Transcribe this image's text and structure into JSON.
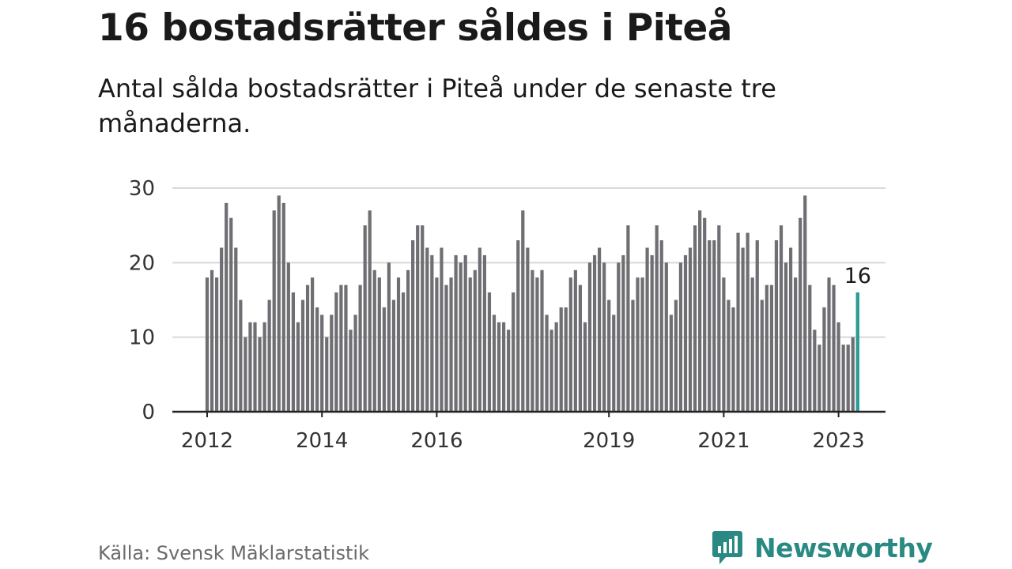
{
  "header": {
    "title": "16 bostadsrätter såldes i Piteå",
    "subtitle": "Antal sålda bostadsrätter i Piteå under de senaste tre månaderna."
  },
  "footer": {
    "source": "Källa: Svensk Mäklarstatistik",
    "brand_name": "Newsworthy",
    "brand_icon": "newsworthy-logo-icon"
  },
  "colors": {
    "bar": "#6e6e73",
    "highlight": "#2a9d94",
    "grid": "#d9d9d9",
    "axis": "#222222",
    "brand": "#2a8a83"
  },
  "chart_data": {
    "type": "bar",
    "title": "16 bostadsrätter såldes i Piteå",
    "subtitle": "Antal sålda bostadsrätter i Piteå under de senaste tre månaderna.",
    "xlabel": "",
    "ylabel": "",
    "ylim": [
      0,
      30
    ],
    "yticks": [
      0,
      10,
      20,
      30
    ],
    "grid": true,
    "xtick_labels": [
      {
        "label": "2012",
        "index": 0
      },
      {
        "label": "2014",
        "index": 24
      },
      {
        "label": "2016",
        "index": 48
      },
      {
        "label": "2019",
        "index": 84
      },
      {
        "label": "2021",
        "index": 108
      },
      {
        "label": "2023",
        "index": 132
      }
    ],
    "x_start": "2012-01",
    "x_end": "2023-04",
    "values": [
      18,
      19,
      18,
      22,
      28,
      26,
      22,
      15,
      10,
      12,
      12,
      10,
      12,
      15,
      27,
      29,
      28,
      20,
      16,
      12,
      15,
      17,
      18,
      14,
      13,
      10,
      13,
      16,
      17,
      17,
      11,
      13,
      17,
      25,
      27,
      19,
      18,
      14,
      20,
      15,
      18,
      16,
      19,
      23,
      25,
      25,
      22,
      21,
      18,
      22,
      17,
      18,
      21,
      20,
      21,
      18,
      19,
      22,
      21,
      16,
      13,
      12,
      12,
      11,
      16,
      23,
      27,
      22,
      19,
      18,
      19,
      13,
      11,
      12,
      14,
      14,
      18,
      19,
      17,
      12,
      20,
      21,
      22,
      20,
      15,
      13,
      20,
      21,
      25,
      15,
      18,
      18,
      22,
      21,
      25,
      23,
      20,
      13,
      15,
      20,
      21,
      22,
      25,
      27,
      26,
      23,
      23,
      25,
      18,
      15,
      14,
      24,
      22,
      24,
      18,
      23,
      15,
      17,
      17,
      23,
      25,
      20,
      22,
      18,
      26,
      29,
      17,
      11,
      9,
      14,
      18,
      17,
      12,
      9,
      9,
      10,
      16
    ],
    "highlight": {
      "index": 136,
      "label": "16",
      "value": 16
    }
  }
}
